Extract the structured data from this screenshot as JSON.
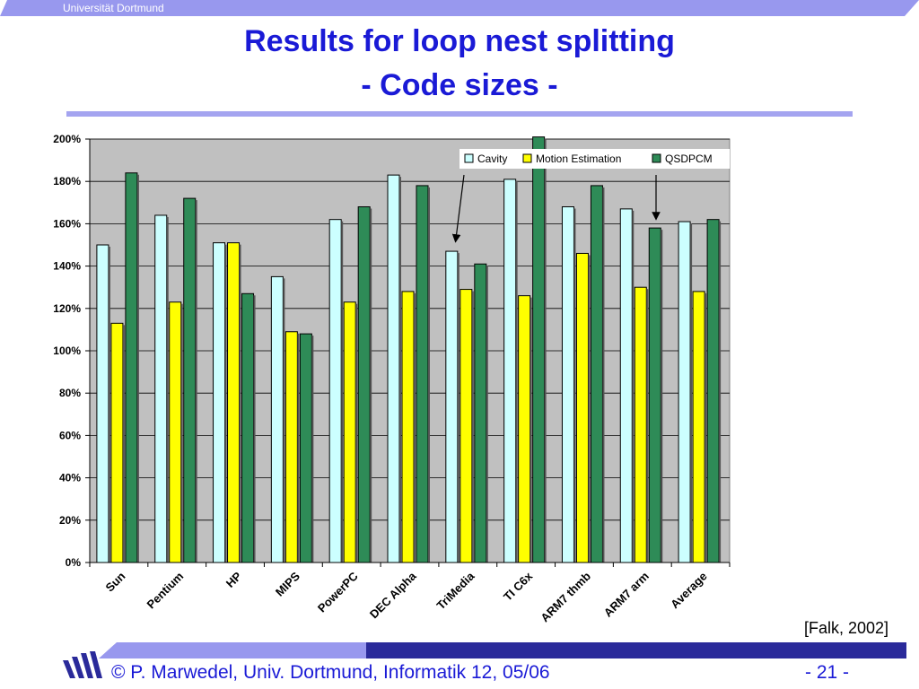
{
  "header": {
    "university": "Universität Dortmund"
  },
  "title": {
    "line1": "Results for loop nest splitting",
    "line2": "- Code sizes -"
  },
  "colors": {
    "title": "#1a1ad6",
    "cavity": "#ccffff",
    "motion": "#ffff00",
    "qsdpcm": "#2e8b57",
    "plot_bg": "#c0c0c0",
    "bar_strip": "#9898ee"
  },
  "chart_data": {
    "type": "bar",
    "categories": [
      "Sun",
      "Pentium",
      "HP",
      "MIPS",
      "PowerPC",
      "DEC Alpha",
      "TriMedia",
      "TI C6x",
      "ARM7 thmb",
      "ARM7 arm",
      "Average"
    ],
    "series": [
      {
        "name": "Cavity",
        "color": "#ccffff",
        "values": [
          150,
          164,
          151,
          135,
          162,
          183,
          147,
          181,
          168,
          167,
          161
        ]
      },
      {
        "name": "Motion Estimation",
        "color": "#ffff00",
        "values": [
          113,
          123,
          151,
          109,
          123,
          128,
          129,
          126,
          146,
          130,
          128
        ]
      },
      {
        "name": "QSDPCM",
        "color": "#2e8b57",
        "values": [
          184,
          172,
          127,
          108,
          168,
          178,
          141,
          201,
          178,
          158,
          162
        ]
      }
    ],
    "yticks": [
      "0%",
      "20%",
      "40%",
      "60%",
      "80%",
      "100%",
      "120%",
      "140%",
      "160%",
      "180%",
      "200%"
    ],
    "ylim": [
      0,
      200
    ],
    "grid": true,
    "legend": "top-right"
  },
  "citation": "[Falk, 2002]",
  "footer": {
    "text": "© P. Marwedel, Univ. Dortmund, Informatik 12, 05/06",
    "page": "-  21 -"
  }
}
